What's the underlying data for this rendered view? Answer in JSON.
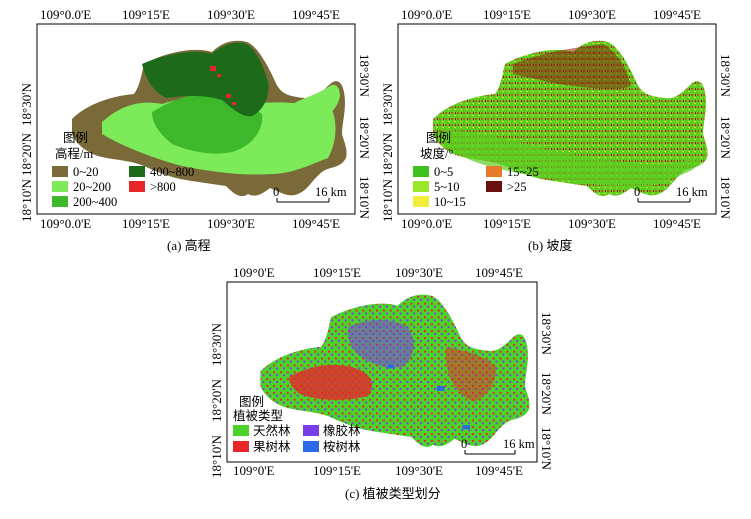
{
  "panels": [
    {
      "caption": "(a) 高程",
      "lon_ticks": [
        "109°0.0'E",
        "109°15'E",
        "109°30'E",
        "109°45'E"
      ],
      "lat_ticks": [
        "18°30'N",
        "18°20'N",
        "18°10'N"
      ],
      "legend": {
        "title": "图例",
        "subtitle": "高程/m",
        "items": [
          {
            "label": "0~20",
            "color": "#7a6a3a"
          },
          {
            "label": "20~200",
            "color": "#7dea5a"
          },
          {
            "label": "200~400",
            "color": "#3cb82a"
          },
          {
            "label": "400~800",
            "color": "#1d6a1a"
          },
          {
            "label": ">800",
            "color": "#e8262a"
          }
        ]
      },
      "scale_bar": {
        "left": "0",
        "right": "16 km"
      }
    },
    {
      "caption": "(b) 坡度",
      "lon_ticks": [
        "109°0.0'E",
        "109°15'E",
        "109°30'E",
        "109°45'E"
      ],
      "lat_ticks": [
        "18°30'N",
        "18°20'N",
        "18°10'N"
      ],
      "legend": {
        "title": "图例",
        "subtitle": "坡度/°",
        "items": [
          {
            "label": "0~5",
            "color": "#3fc21e"
          },
          {
            "label": "5~10",
            "color": "#9be82a"
          },
          {
            "label": "10~15",
            "color": "#f2ee3a"
          },
          {
            "label": "15~25",
            "color": "#e8782a"
          },
          {
            "label": ">25",
            "color": "#6a1010"
          }
        ]
      },
      "scale_bar": {
        "left": "0",
        "right": "16 km"
      }
    },
    {
      "caption": "(c) 植被类型划分",
      "lon_ticks": [
        "109°0'E",
        "109°15'E",
        "109°30'E",
        "109°45'E"
      ],
      "lat_ticks": [
        "18°30'N",
        "18°20'N",
        "18°10'N"
      ],
      "legend": {
        "title": "图例",
        "subtitle": "植被类型",
        "items": [
          {
            "label": "天然林",
            "color": "#4cd32a"
          },
          {
            "label": "橡胶林",
            "color": "#7a3ce8"
          },
          {
            "label": "果树林",
            "color": "#e8262a"
          },
          {
            "label": "桉树林",
            "color": "#2a6ae8"
          }
        ]
      },
      "scale_bar": {
        "left": "0",
        "right": "16 km"
      }
    }
  ]
}
